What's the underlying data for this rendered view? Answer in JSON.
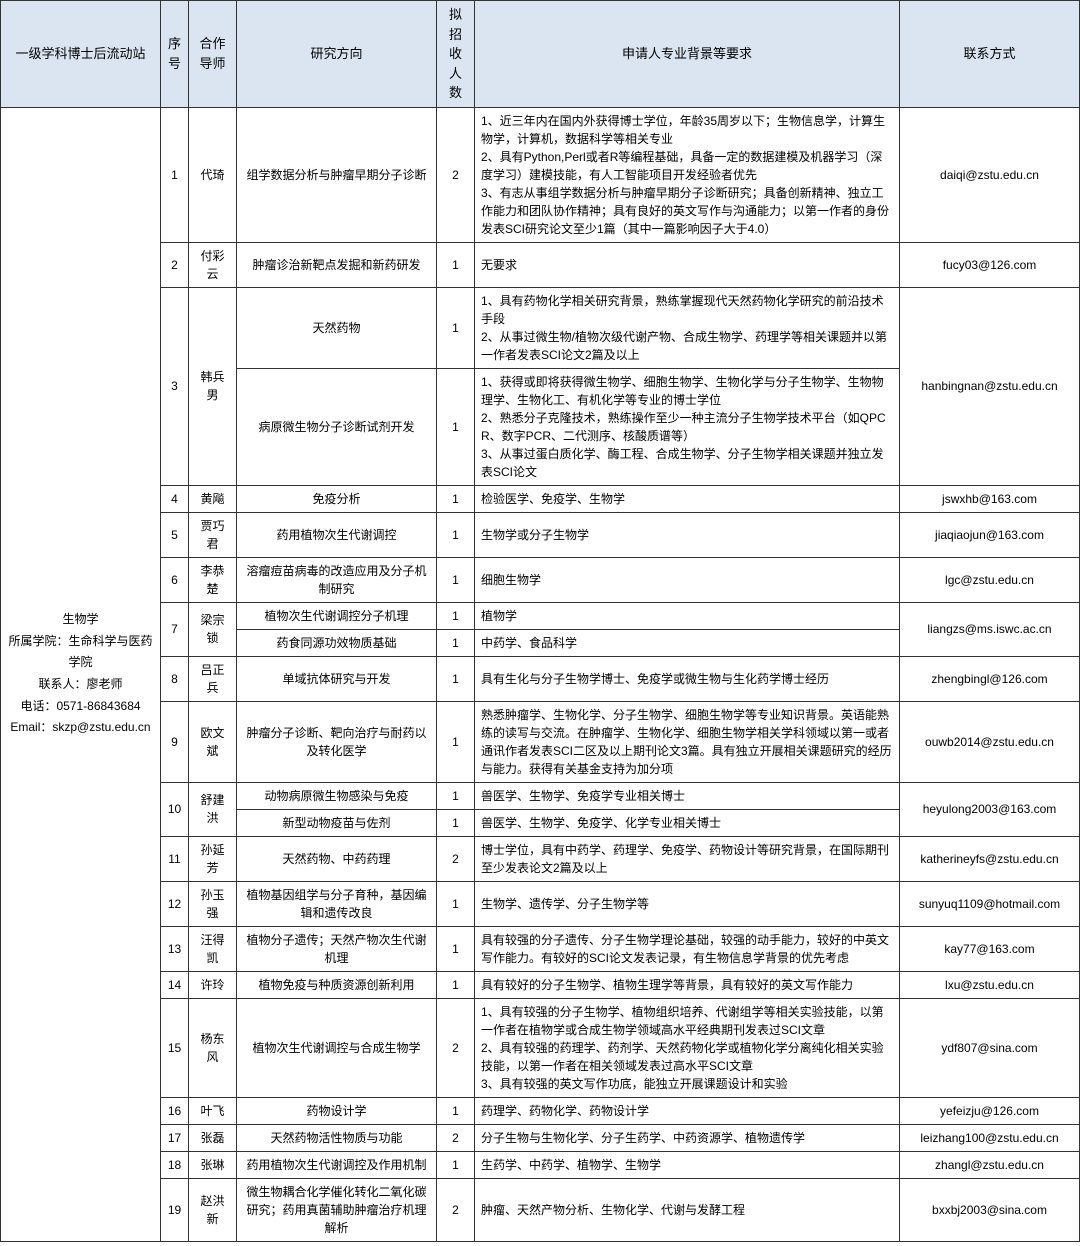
{
  "headers": {
    "station": "一级学科博士后流动站",
    "idx": "序号",
    "advisor": "合作导师",
    "direction": "研究方向",
    "count": "拟招收人数",
    "requirements": "申请人专业背景等要求",
    "contact": "联系方式"
  },
  "station": {
    "line1": "生物学",
    "line2": "所属学院：生命科学与医药学院",
    "line3": "联系人：廖老师",
    "line4": "电话：0571-86843684",
    "line5": "Email：skzp@zstu.edu.cn"
  },
  "rows": {
    "r1": {
      "idx": "1",
      "advisor": "代琦",
      "direction": "组学数据分析与肿瘤早期分子诊断",
      "count": "2",
      "req": "1、近三年内在国内外获得博士学位，年龄35周岁以下；生物信息学，计算生物学，计算机，数据科学等相关专业\n2、具有Python,Perl或者R等编程基础，具备一定的数据建模及机器学习（深度学习）建模技能，有人工智能项目开发经验者优先\n3、有志从事组学数据分析与肿瘤早期分子诊断研究；具备创新精神、独立工作能力和团队协作精神；具有良好的英文写作与沟通能力；以第一作者的身份发表SCI研究论文至少1篇（其中一篇影响因子大于4.0）",
      "contact": "daiqi@zstu.edu.cn"
    },
    "r2": {
      "idx": "2",
      "advisor": "付彩云",
      "direction": "肿瘤诊治新靶点发掘和新药研发",
      "count": "1",
      "req": "无要求",
      "contact": "fucy03@126.com"
    },
    "r3": {
      "idx": "3",
      "advisor": "韩兵男",
      "direction_a": "天然药物",
      "count_a": "1",
      "req_a": "1、具有药物化学相关研究背景，熟练掌握现代天然药物化学研究的前沿技术手段\n2、从事过微生物/植物次级代谢产物、合成生物学、药理学等相关课题并以第一作者发表SCI论文2篇及以上",
      "direction_b": "病原微生物分子诊断试剂开发",
      "count_b": "1",
      "req_b": "1、获得或即将获得微生物学、细胞生物学、生物化学与分子生物学、生物物理学、生物化工、有机化学等专业的博士学位\n2、熟悉分子克隆技术，熟练操作至少一种主流分子生物学技术平台（如QPCR、数字PCR、二代测序、核酸质谱等）\n3、从事过蛋白质化学、酶工程、合成生物学、分子生物学相关课题并独立发表SCI论文",
      "contact": "hanbingnan@zstu.edu.cn"
    },
    "r4": {
      "idx": "4",
      "advisor": "黄飚",
      "direction": "免疫分析",
      "count": "1",
      "req": "检验医学、免疫学、生物学",
      "contact": "jswxhb@163.com"
    },
    "r5": {
      "idx": "5",
      "advisor": "贾巧君",
      "direction": "药用植物次生代谢调控",
      "count": "1",
      "req": "生物学或分子生物学",
      "contact": "jiaqiaojun@163.com"
    },
    "r6": {
      "idx": "6",
      "advisor": "李恭楚",
      "direction": "溶瘤痘苗病毒的改造应用及分子机制研究",
      "count": "1",
      "req": "细胞生物学",
      "contact": "lgc@zstu.edu.cn"
    },
    "r7": {
      "idx": "7",
      "advisor": "梁宗锁",
      "direction_a": "植物次生代谢调控分子机理",
      "count_a": "1",
      "req_a": "植物学",
      "direction_b": "药食同源功效物质基础",
      "count_b": "1",
      "req_b": "中药学、食品科学",
      "contact": "liangzs@ms.iswc.ac.cn"
    },
    "r8": {
      "idx": "8",
      "advisor": "吕正兵",
      "direction": "单域抗体研究与开发",
      "count": "1",
      "req": "具有生化与分子生物学博士、免疫学或微生物与生化药学博士经历",
      "contact": "zhengbingl@126.com"
    },
    "r9": {
      "idx": "9",
      "advisor": "欧文斌",
      "direction": "肿瘤分子诊断、靶向治疗与耐药以及转化医学",
      "count": "1",
      "req": "熟悉肿瘤学、生物化学、分子生物学、细胞生物学等专业知识背景。英语能熟练的读写与交流。在肿瘤学、生物化学、细胞生物学相关学科领域以第一或者通讯作者发表SCI二区及以上期刊论文3篇。具有独立开展相关课题研究的经历与能力。获得有关基金支持为加分项",
      "contact": "ouwb2014@zstu.edu.cn"
    },
    "r10": {
      "idx": "10",
      "advisor": "舒建洪",
      "direction_a": "动物病原微生物感染与免疫",
      "count_a": "1",
      "req_a": "兽医学、生物学、免疫学专业相关博士",
      "direction_b": "新型动物疫苗与佐剂",
      "count_b": "1",
      "req_b": "兽医学、生物学、免疫学、化学专业相关博士",
      "contact": "heyulong2003@163.com"
    },
    "r11": {
      "idx": "11",
      "advisor": "孙延芳",
      "direction": "天然药物、中药药理",
      "count": "2",
      "req": "博士学位，具有中药学、药理学、免疫学、药物设计等研究背景，在国际期刊至少发表论文2篇及以上",
      "contact": "katherineyfs@zstu.edu.cn"
    },
    "r12": {
      "idx": "12",
      "advisor": "孙玉强",
      "direction": "植物基因组学与分子育种，基因编辑和遗传改良",
      "count": "1",
      "req": "生物学、遗传学、分子生物学等",
      "contact": "sunyuq1109@hotmail.com"
    },
    "r13": {
      "idx": "13",
      "advisor": "汪得凯",
      "direction": "植物分子遗传；天然产物次生代谢机理",
      "count": "1",
      "req": "具有较强的分子遗传、分子生物学理论基础，较强的动手能力，较好的中英文写作能力。有较好的SCI论文发表记录，有生物信息学背景的优先考虑",
      "contact": "kay77@163.com"
    },
    "r14": {
      "idx": "14",
      "advisor": "许玲",
      "direction": "植物免疫与种质资源创新利用",
      "count": "1",
      "req": "具有较好的分子生物学、植物生理学等背景，具有较好的英文写作能力",
      "contact": "lxu@zstu.edu.cn"
    },
    "r15": {
      "idx": "15",
      "advisor": "杨东风",
      "direction": "植物次生代谢调控与合成生物学",
      "count": "2",
      "req": "1、具有较强的分子生物学、植物组织培养、代谢组学等相关实验技能，以第一作者在植物学或合成生物学领域高水平经典期刊发表过SCI文章\n2、具有较强的药理学、药剂学、天然药物化学或植物化学分离纯化相关实验技能，以第一作者在相关领域发表过高水平SCI文章\n3、具有较强的英文写作功底，能独立开展课题设计和实验",
      "contact": "ydf807@sina.com"
    },
    "r16": {
      "idx": "16",
      "advisor": "叶飞",
      "direction": "药物设计学",
      "count": "1",
      "req": "药理学、药物化学、药物设计学",
      "contact": "yefeizju@126.com"
    },
    "r17": {
      "idx": "17",
      "advisor": "张磊",
      "direction": "天然药物活性物质与功能",
      "count": "2",
      "req": "分子生物与生物化学、分子生药学、中药资源学、植物遗传学",
      "contact": "leizhang100@zstu.edu.cn"
    },
    "r18": {
      "idx": "18",
      "advisor": "张琳",
      "direction": "药用植物次生代谢调控及作用机制",
      "count": "1",
      "req": "生药学、中药学、植物学、生物学",
      "contact": "zhangl@zstu.edu.cn"
    },
    "r19": {
      "idx": "19",
      "advisor": "赵洪新",
      "direction": "微生物耦合化学催化转化二氧化碳研究；药用真菌辅助肿瘤治疗机理解析",
      "count": "2",
      "req": "肿瘤、天然产物分析、生物化学、代谢与发酵工程",
      "contact": "bxxbj2003@sina.com"
    }
  }
}
